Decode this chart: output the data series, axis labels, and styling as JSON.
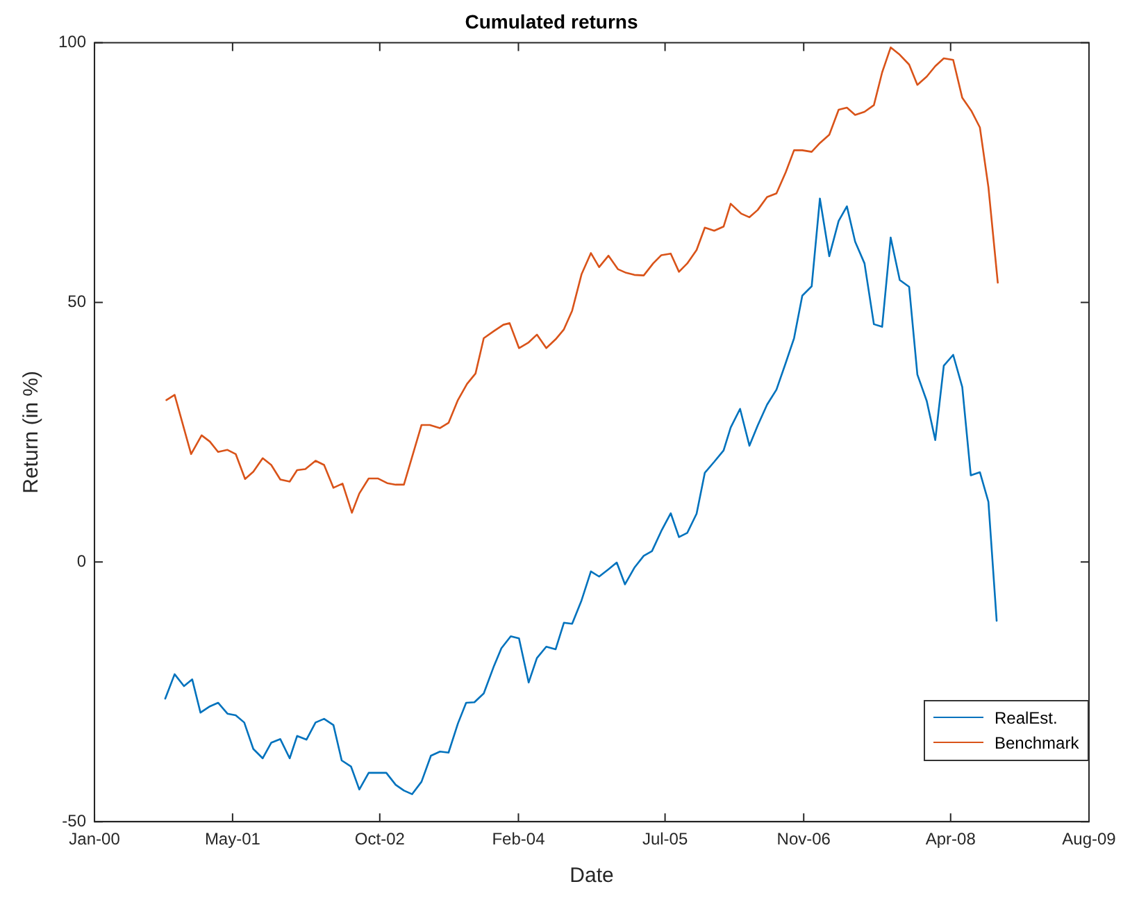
{
  "chart_data": {
    "type": "line",
    "title": "Cumulated returns",
    "xlabel": "Date",
    "ylabel": "Return (in %)",
    "xlim": [
      "2000-01-01",
      "2009-08-01"
    ],
    "xticks": [
      {
        "value": "2000-01-01",
        "label": "Jan-00"
      },
      {
        "value": "2001-05-01",
        "label": "May-01"
      },
      {
        "value": "2002-10-01",
        "label": "Oct-02"
      },
      {
        "value": "2004-02-01",
        "label": "Feb-04"
      },
      {
        "value": "2005-07-01",
        "label": "Jul-05"
      },
      {
        "value": "2006-11-01",
        "label": "Nov-06"
      },
      {
        "value": "2008-04-01",
        "label": "Apr-08"
      },
      {
        "value": "2009-08-01",
        "label": "Aug-09"
      }
    ],
    "ylim": [
      -50,
      100
    ],
    "yticks": [
      -50,
      0,
      50,
      100
    ],
    "grid": false,
    "legend": "bottom right",
    "marker": "none",
    "line_style": "solid",
    "series": [
      {
        "name": "RealEst.",
        "color": "#0072bd",
        "x": [
          "2000-09-06",
          "2000-10-09",
          "2000-11-11",
          "2000-12-10",
          "2001-01-08",
          "2001-02-10",
          "2001-03-11",
          "2001-04-13",
          "2001-05-12",
          "2001-06-11",
          "2001-07-13",
          "2001-08-15",
          "2001-09-14",
          "2001-10-16",
          "2001-11-18",
          "2001-12-14",
          "2002-01-16",
          "2002-02-17",
          "2002-03-19",
          "2002-04-21",
          "2002-05-20",
          "2002-06-22",
          "2002-07-21",
          "2002-08-23",
          "2002-09-24",
          "2002-10-24",
          "2002-11-26",
          "2002-12-25",
          "2003-01-23",
          "2003-02-25",
          "2003-03-30",
          "2003-05-01",
          "2003-05-31",
          "2003-07-03",
          "2003-08-01",
          "2003-08-30",
          "2003-10-02",
          "2003-11-07",
          "2003-12-03",
          "2004-01-05",
          "2004-02-03",
          "2004-03-08",
          "2004-04-06",
          "2004-05-09",
          "2004-06-11",
          "2004-07-10",
          "2004-08-08",
          "2004-09-10",
          "2004-10-13",
          "2004-11-11",
          "2004-12-14",
          "2005-01-12",
          "2005-02-10",
          "2005-03-15",
          "2005-04-17",
          "2005-05-16",
          "2005-06-18",
          "2005-07-21",
          "2005-08-19",
          "2005-09-17",
          "2005-10-20",
          "2005-11-18",
          "2005-12-21",
          "2006-01-23",
          "2006-02-17",
          "2006-03-22",
          "2006-04-24",
          "2006-05-23",
          "2006-06-25",
          "2006-07-28",
          "2006-08-30",
          "2006-09-28",
          "2006-10-27",
          "2006-11-29",
          "2006-12-28",
          "2007-01-30",
          "2007-03-04",
          "2007-04-02",
          "2007-05-01",
          "2007-06-03",
          "2007-07-06",
          "2007-08-04",
          "2007-09-03",
          "2007-10-05",
          "2007-11-07",
          "2007-12-06",
          "2008-01-08",
          "2008-02-07",
          "2008-03-08",
          "2008-04-10",
          "2008-05-12",
          "2008-06-11",
          "2008-07-13",
          "2008-08-12",
          "2008-09-10"
        ],
        "values": [
          -26.3,
          -21.6,
          -23.9,
          -22.6,
          -29.0,
          -27.8,
          -27.1,
          -29.2,
          -29.5,
          -30.9,
          -36.0,
          -37.8,
          -34.8,
          -34.1,
          -37.8,
          -33.5,
          -34.2,
          -30.9,
          -30.2,
          -31.4,
          -38.2,
          -39.4,
          -43.8,
          -40.6,
          -40.6,
          -40.6,
          -42.9,
          -44.0,
          -44.7,
          -42.3,
          -37.3,
          -36.5,
          -36.7,
          -31.1,
          -27.1,
          -27.0,
          -25.3,
          -20.0,
          -16.6,
          -14.3,
          -14.7,
          -23.2,
          -18.5,
          -16.3,
          -16.8,
          -11.7,
          -11.9,
          -7.4,
          -1.8,
          -2.8,
          -1.4,
          -0.1,
          -4.3,
          -1.1,
          1.2,
          2.1,
          6.0,
          9.4,
          4.8,
          5.6,
          9.3,
          17.2,
          19.3,
          21.5,
          25.9,
          29.5,
          22.4,
          26.3,
          30.3,
          33.2,
          38.4,
          43.1,
          51.3,
          53.1,
          70.0,
          58.9,
          65.7,
          68.5,
          61.7,
          57.5,
          45.8,
          45.3,
          62.5,
          54.3,
          53.0,
          36.1,
          31.0,
          23.5,
          37.8,
          39.9,
          33.7,
          16.7,
          17.3,
          11.6,
          -11.3
        ]
      },
      {
        "name": "Benchmark",
        "color": "#d95319",
        "x": [
          "2000-09-10",
          "2000-10-09",
          "2000-12-06",
          "2001-01-12",
          "2001-02-10",
          "2001-03-11",
          "2001-04-13",
          "2001-05-12",
          "2001-06-14",
          "2001-07-13",
          "2001-08-15",
          "2001-09-14",
          "2001-10-16",
          "2001-11-18",
          "2001-12-14",
          "2002-01-12",
          "2002-02-17",
          "2002-03-19",
          "2002-04-21",
          "2002-05-23",
          "2002-06-25",
          "2002-07-21",
          "2002-08-23",
          "2002-09-24",
          "2002-10-27",
          "2002-11-26",
          "2002-12-25",
          "2003-02-25",
          "2003-03-26",
          "2003-05-01",
          "2003-05-31",
          "2003-07-03",
          "2003-08-04",
          "2003-09-03",
          "2003-10-02",
          "2003-11-07",
          "2003-12-10",
          "2004-01-01",
          "2004-02-03",
          "2004-03-08",
          "2004-04-06",
          "2004-05-09",
          "2004-06-11",
          "2004-07-10",
          "2004-08-08",
          "2004-09-10",
          "2004-10-13",
          "2004-11-11",
          "2004-12-14",
          "2005-01-16",
          "2005-02-14",
          "2005-03-15",
          "2005-04-17",
          "2005-05-20",
          "2005-06-18",
          "2005-07-21",
          "2005-08-19",
          "2005-09-17",
          "2005-10-20",
          "2005-11-18",
          "2005-12-21",
          "2006-01-23",
          "2006-02-17",
          "2006-03-26",
          "2006-04-24",
          "2006-05-23",
          "2006-06-25",
          "2006-07-28",
          "2006-08-30",
          "2006-09-28",
          "2006-10-27",
          "2006-11-29",
          "2006-12-28",
          "2007-01-30",
          "2007-03-04",
          "2007-04-02",
          "2007-05-01",
          "2007-06-03",
          "2007-07-06",
          "2007-08-04",
          "2007-09-03",
          "2007-10-05",
          "2007-11-07",
          "2007-12-06",
          "2008-01-08",
          "2008-02-07",
          "2008-03-08",
          "2008-04-10",
          "2008-05-12",
          "2008-06-14",
          "2008-07-13",
          "2008-08-12",
          "2008-09-14"
        ],
        "values": [
          31.2,
          32.2,
          20.8,
          24.4,
          23.2,
          21.2,
          21.6,
          20.8,
          16.0,
          17.4,
          20.0,
          18.7,
          15.9,
          15.5,
          17.7,
          17.9,
          19.5,
          18.7,
          14.3,
          15.1,
          9.5,
          13.2,
          16.1,
          16.1,
          15.2,
          14.9,
          14.9,
          26.4,
          26.4,
          25.8,
          26.8,
          31.2,
          34.3,
          36.3,
          43.1,
          44.5,
          45.7,
          46.0,
          41.2,
          42.3,
          43.8,
          41.2,
          42.9,
          44.8,
          48.4,
          55.4,
          59.5,
          56.8,
          59.0,
          56.4,
          55.7,
          55.3,
          55.2,
          57.5,
          59.1,
          59.4,
          55.9,
          57.5,
          60.1,
          64.4,
          63.8,
          64.6,
          69.0,
          67.1,
          66.4,
          67.8,
          70.3,
          71.0,
          75.1,
          79.3,
          79.3,
          79.0,
          80.7,
          82.3,
          87.1,
          87.5,
          86.1,
          86.7,
          88.0,
          94.3,
          99.1,
          97.7,
          95.8,
          91.9,
          93.5,
          95.5,
          97.0,
          96.7,
          89.4,
          86.8,
          83.7,
          72.2,
          53.8
        ]
      }
    ]
  }
}
